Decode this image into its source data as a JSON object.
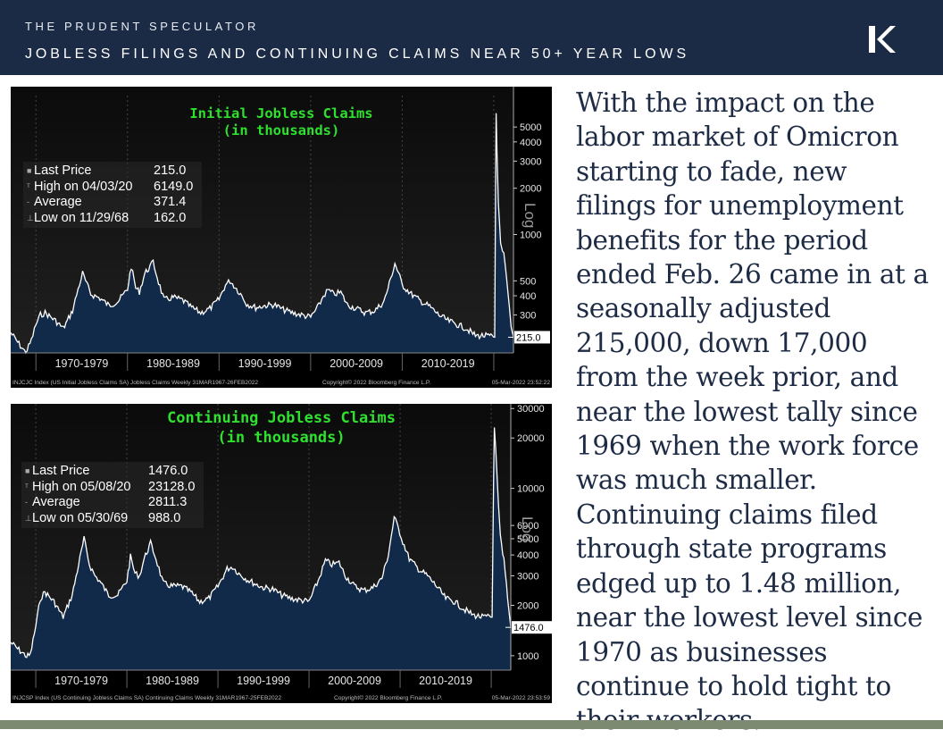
{
  "header": {
    "brand": "THE PRUDENT SPECULATOR",
    "title": "JOBLESS FILINGS AND CONTINUING CLAIMS NEAR 50+ YEAR LOWS",
    "logo_icon": "kovitz-logo-icon"
  },
  "colors": {
    "header_bg": "#1b2a45",
    "chart_title": "#2fe02f",
    "area_fill": "#112a4a",
    "text": "#1e2b45",
    "footer": "#7c8a72"
  },
  "body_text": "With the impact on the labor market of Omicron starting to fade, new filings for unemployment benefits for the period ended Feb. 26 came in at a seasonally adjusted 215,000, down 17,000 from the week prior, and near the lowest tally since 1969 when the work force was much smaller. Continuing claims filed through state programs edged up to 1.48 million, near the lowest level since 1970 as businesses continue to hold tight to their workers.",
  "charts": [
    {
      "title_line1": "Initial Jobless Claims",
      "title_line2": "(in thousands)",
      "stats": [
        {
          "label": "Last Price",
          "value": "215.0"
        },
        {
          "label": "High on 04/03/20",
          "value": "6149.0"
        },
        {
          "label": "Average",
          "value": "371.4"
        },
        {
          "label": "Low on 11/29/68",
          "value": "162.0"
        }
      ],
      "scale_label": "Log",
      "last_label": "215.0",
      "footer_left": "INJCJC Index (US Initial Jobless Claims SA) Jobless Claims  Weekly 31MAR1967-26FEB2022",
      "footer_mid": "Copyright© 2022 Bloomberg Finance L.P.",
      "footer_right": "05-Mar-2022 23:52:22"
    },
    {
      "title_line1": "Continuing Jobless Claims",
      "title_line2": "(in thousands)",
      "stats": [
        {
          "label": "Last Price",
          "value": "1476.0"
        },
        {
          "label": "High on 05/08/20",
          "value": "23128.0"
        },
        {
          "label": "Average",
          "value": "2811.3"
        },
        {
          "label": "Low on 05/30/69",
          "value": "988.0"
        }
      ],
      "scale_label": "Log",
      "last_label": "1476.0",
      "footer_left": "INJCSP Index (US Continuing Jobless Claims SA) Continuing Claims  Weekly 31MAR1967-25FEB2022",
      "footer_mid": "Copyright© 2022 Bloomberg Finance L.P.",
      "footer_right": "05-Mar-2022 23:53:59"
    }
  ],
  "chart_data": [
    {
      "type": "area",
      "title": "Initial Jobless Claims (in thousands)",
      "scale": "log",
      "x_start": 1967.25,
      "x_end": 2022.15,
      "x_categories": [
        "1970-1979",
        "1980-1989",
        "1990-1999",
        "2000-2009",
        "2010-2019"
      ],
      "y_ticks": [
        300,
        400,
        500,
        1000,
        2000,
        3000,
        4000,
        5000
      ],
      "ylim": [
        170,
        8000
      ],
      "last_value": 215,
      "series": [
        {
          "points": [
            [
              1967.25,
              230
            ],
            [
              1968.0,
              200
            ],
            [
              1968.9,
              170
            ],
            [
              1969.5,
              205
            ],
            [
              1970.0,
              260
            ],
            [
              1970.5,
              300
            ],
            [
              1971.0,
              310
            ],
            [
              1972.0,
              280
            ],
            [
              1973.0,
              245
            ],
            [
              1974.0,
              320
            ],
            [
              1974.6,
              440
            ],
            [
              1975.1,
              560
            ],
            [
              1975.6,
              470
            ],
            [
              1976.0,
              410
            ],
            [
              1977.0,
              385
            ],
            [
              1978.0,
              345
            ],
            [
              1979.0,
              370
            ],
            [
              1980.0,
              440
            ],
            [
              1980.4,
              620
            ],
            [
              1980.9,
              450
            ],
            [
              1981.3,
              425
            ],
            [
              1981.9,
              560
            ],
            [
              1982.3,
              600
            ],
            [
              1982.8,
              660
            ],
            [
              1983.4,
              490
            ],
            [
              1984.0,
              375
            ],
            [
              1985.0,
              390
            ],
            [
              1986.0,
              375
            ],
            [
              1987.0,
              335
            ],
            [
              1988.0,
              310
            ],
            [
              1989.0,
              330
            ],
            [
              1990.0,
              380
            ],
            [
              1990.7,
              470
            ],
            [
              1991.2,
              500
            ],
            [
              1991.9,
              445
            ],
            [
              1992.5,
              400
            ],
            [
              1993.0,
              355
            ],
            [
              1994.0,
              335
            ],
            [
              1995.0,
              345
            ],
            [
              1996.0,
              350
            ],
            [
              1997.0,
              325
            ],
            [
              1998.0,
              310
            ],
            [
              1999.0,
              300
            ],
            [
              2000.0,
              290
            ],
            [
              2000.9,
              345
            ],
            [
              2001.4,
              400
            ],
            [
              2001.9,
              435
            ],
            [
              2002.5,
              410
            ],
            [
              2003.3,
              420
            ],
            [
              2004.0,
              350
            ],
            [
              2005.0,
              330
            ],
            [
              2006.0,
              310
            ],
            [
              2007.0,
              320
            ],
            [
              2008.0,
              365
            ],
            [
              2008.6,
              480
            ],
            [
              2009.2,
              650
            ],
            [
              2009.6,
              560
            ],
            [
              2010.0,
              470
            ],
            [
              2011.0,
              410
            ],
            [
              2012.0,
              370
            ],
            [
              2013.0,
              340
            ],
            [
              2014.0,
              300
            ],
            [
              2015.0,
              275
            ],
            [
              2016.0,
              260
            ],
            [
              2017.0,
              245
            ],
            [
              2018.0,
              220
            ],
            [
              2019.0,
              220
            ],
            [
              2020.1,
              215
            ],
            [
              2020.22,
              3300
            ],
            [
              2020.26,
              6149
            ],
            [
              2020.35,
              3500
            ],
            [
              2020.5,
              1600
            ],
            [
              2020.75,
              880
            ],
            [
              2020.95,
              780
            ],
            [
              2021.1,
              760
            ],
            [
              2021.4,
              520
            ],
            [
              2021.7,
              340
            ],
            [
              2021.9,
              250
            ],
            [
              2022.15,
              215
            ]
          ]
        }
      ]
    },
    {
      "type": "area",
      "title": "Continuing Jobless Claims (in thousands)",
      "scale": "log",
      "x_start": 1967.25,
      "x_end": 2022.15,
      "x_categories": [
        "1970-1979",
        "1980-1989",
        "1990-1999",
        "2000-2009",
        "2010-2019"
      ],
      "y_ticks": [
        1000,
        2000,
        3000,
        4000,
        5000,
        6000,
        10000,
        20000,
        30000
      ],
      "ylim": [
        820,
        32000
      ],
      "last_value": 1476,
      "series": [
        {
          "points": [
            [
              1967.25,
              1200
            ],
            [
              1968.0,
              1100
            ],
            [
              1969.0,
              990
            ],
            [
              1969.4,
              1010
            ],
            [
              1970.0,
              1500
            ],
            [
              1970.5,
              2200
            ],
            [
              1971.0,
              2400
            ],
            [
              1972.0,
              2100
            ],
            [
              1973.0,
              1700
            ],
            [
              1974.0,
              2300
            ],
            [
              1974.7,
              3500
            ],
            [
              1975.3,
              5000
            ],
            [
              1975.9,
              3500
            ],
            [
              1976.5,
              3000
            ],
            [
              1977.0,
              2800
            ],
            [
              1978.0,
              2300
            ],
            [
              1979.0,
              2300
            ],
            [
              1980.0,
              2800
            ],
            [
              1980.4,
              3900
            ],
            [
              1980.9,
              3100
            ],
            [
              1981.4,
              3000
            ],
            [
              1981.9,
              3800
            ],
            [
              1982.6,
              4700
            ],
            [
              1983.2,
              3800
            ],
            [
              1984.0,
              2700
            ],
            [
              1985.0,
              2600
            ],
            [
              1986.0,
              2600
            ],
            [
              1987.0,
              2400
            ],
            [
              1988.0,
              2100
            ],
            [
              1989.0,
              2200
            ],
            [
              1990.0,
              2600
            ],
            [
              1991.0,
              3300
            ],
            [
              1991.6,
              3400
            ],
            [
              1992.3,
              3100
            ],
            [
              1993.0,
              2900
            ],
            [
              1994.0,
              2700
            ],
            [
              1995.0,
              2550
            ],
            [
              1996.0,
              2500
            ],
            [
              1997.0,
              2300
            ],
            [
              1998.0,
              2200
            ],
            [
              1999.0,
              2150
            ],
            [
              2000.0,
              2100
            ],
            [
              2001.0,
              2800
            ],
            [
              2001.8,
              3700
            ],
            [
              2002.5,
              3500
            ],
            [
              2003.3,
              3600
            ],
            [
              2004.0,
              3000
            ],
            [
              2005.0,
              2600
            ],
            [
              2006.0,
              2450
            ],
            [
              2007.0,
              2550
            ],
            [
              2008.0,
              2900
            ],
            [
              2008.7,
              4000
            ],
            [
              2009.35,
              6700
            ],
            [
              2009.8,
              5800
            ],
            [
              2010.3,
              4800
            ],
            [
              2011.0,
              3800
            ],
            [
              2012.0,
              3300
            ],
            [
              2013.0,
              3000
            ],
            [
              2014.0,
              2600
            ],
            [
              2015.0,
              2200
            ],
            [
              2016.0,
              2100
            ],
            [
              2017.0,
              1900
            ],
            [
              2018.0,
              1750
            ],
            [
              2019.0,
              1700
            ],
            [
              2020.1,
              1700
            ],
            [
              2020.27,
              12000
            ],
            [
              2020.35,
              23128
            ],
            [
              2020.5,
              17000
            ],
            [
              2020.8,
              8000
            ],
            [
              2021.0,
              5300
            ],
            [
              2021.4,
              3700
            ],
            [
              2021.8,
              2200
            ],
            [
              2022.15,
              1476
            ]
          ]
        }
      ]
    }
  ]
}
